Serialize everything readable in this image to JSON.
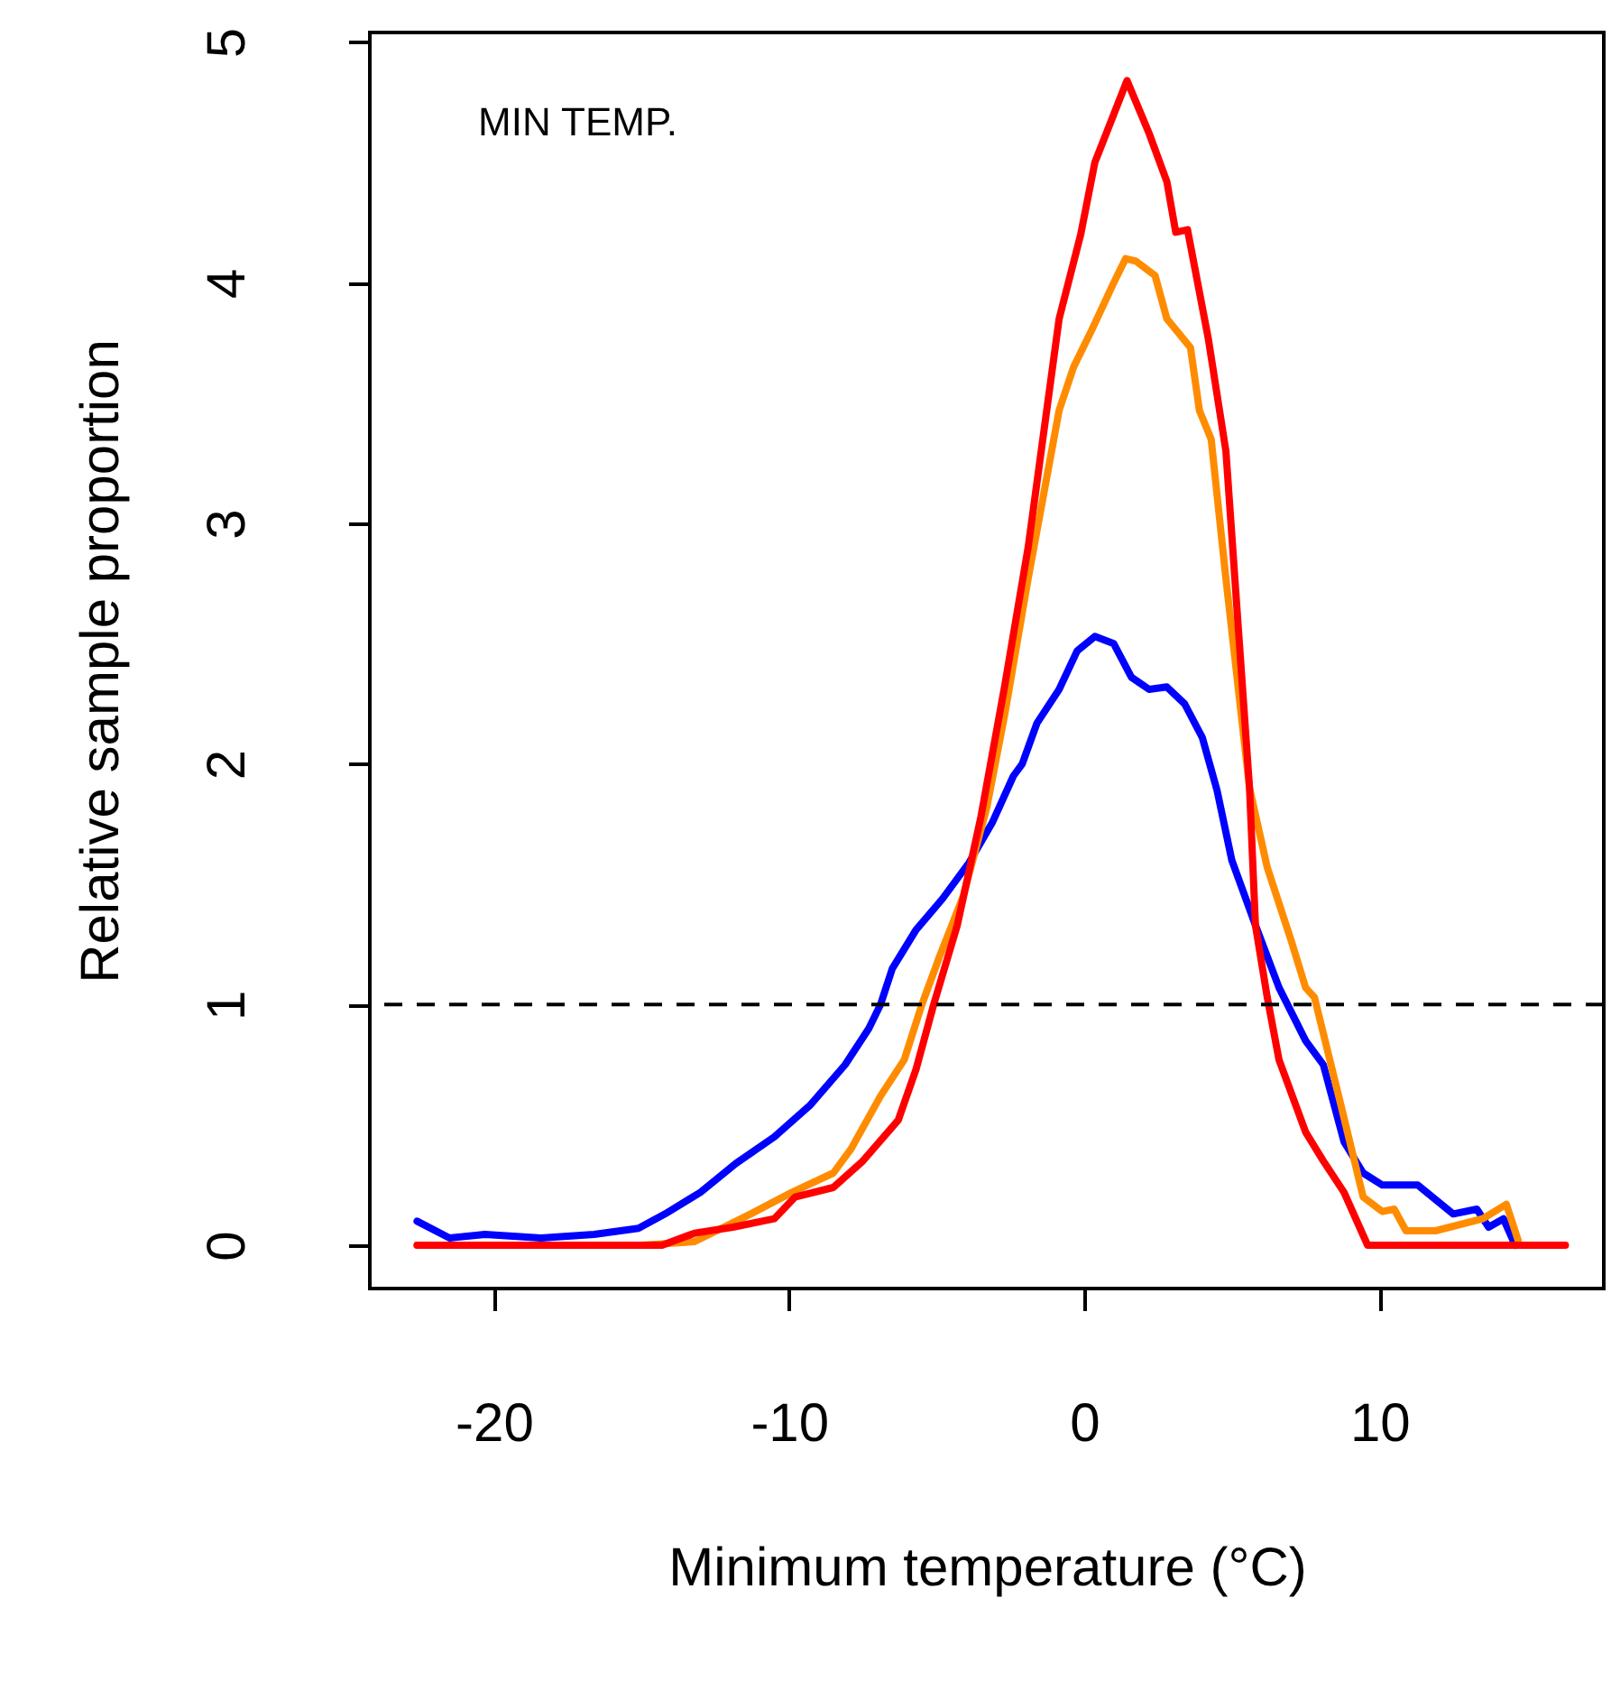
{
  "chart_data": {
    "type": "line",
    "xlabel": "Minimum temperature (°C)",
    "ylabel": "Relative sample proportion",
    "annotations": [
      "MIN TEMP."
    ],
    "xlim": [
      -24.2,
      17.6
    ],
    "xticks": [
      -20,
      -10,
      0,
      10
    ],
    "ylim": [
      -0.18,
      5.04
    ],
    "yticks": [
      0,
      1,
      2,
      3,
      4,
      5
    ],
    "grid": false,
    "ref_lines": [
      {
        "axis": "y",
        "value": 1,
        "line_style": "dashed",
        "color": "#000000"
      }
    ],
    "series": [
      {
        "color": "#0000ff",
        "x": [
          -22.6,
          -21.5,
          -20.3,
          -18.4,
          -16.6,
          -15.1,
          -14.2,
          -13.0,
          -11.8,
          -10.5,
          -9.3,
          -8.1,
          -7.3,
          -6.9,
          -6.5,
          -5.7,
          -4.8,
          -3.9,
          -3.1,
          -2.4,
          -2.1,
          -1.6,
          -0.85,
          -0.24,
          0.36,
          1.0,
          1.6,
          2.2,
          2.8,
          3.4,
          4.0,
          4.5,
          5.0,
          5.8,
          6.6,
          7.5,
          8.1,
          8.8,
          9.45,
          10.1,
          11.3,
          11.9,
          12.5,
          13.3,
          13.7,
          14.2,
          14.6
        ],
        "values": [
          0.1,
          0.03,
          0.045,
          0.03,
          0.045,
          0.07,
          0.13,
          0.22,
          0.34,
          0.45,
          0.58,
          0.75,
          0.9,
          1.0,
          1.15,
          1.31,
          1.44,
          1.59,
          1.76,
          1.95,
          2.0,
          2.17,
          2.31,
          2.47,
          2.53,
          2.5,
          2.36,
          2.31,
          2.32,
          2.25,
          2.11,
          1.89,
          1.6,
          1.33,
          1.07,
          0.85,
          0.75,
          0.43,
          0.3,
          0.25,
          0.25,
          0.19,
          0.13,
          0.15,
          0.075,
          0.11,
          0.0
        ]
      },
      {
        "color": "#ff8c00",
        "x": [
          -22.6,
          -15.0,
          -13.2,
          -11.3,
          -9.9,
          -8.5,
          -7.9,
          -6.9,
          -6.1,
          -5.5,
          -4.9,
          -4.1,
          -3.3,
          -2.7,
          -1.9,
          -0.85,
          -0.36,
          0.24,
          1.0,
          1.4,
          1.75,
          2.4,
          2.8,
          3.6,
          3.9,
          4.3,
          4.8,
          5.6,
          6.2,
          7.0,
          7.5,
          7.8,
          8.7,
          9.45,
          10.1,
          10.5,
          10.9,
          11.9,
          13.5,
          14.3,
          14.7
        ],
        "values": [
          0,
          0,
          0.015,
          0.13,
          0.22,
          0.3,
          0.4,
          0.62,
          0.77,
          1.0,
          1.2,
          1.45,
          1.82,
          2.2,
          2.77,
          3.47,
          3.65,
          3.8,
          4.0,
          4.1,
          4.09,
          4.03,
          3.85,
          3.73,
          3.47,
          3.35,
          2.77,
          1.9,
          1.57,
          1.27,
          1.07,
          1.03,
          0.58,
          0.2,
          0.14,
          0.15,
          0.06,
          0.06,
          0.11,
          0.17,
          0.02
        ]
      },
      {
        "color": "#ff0000",
        "x": [
          -22.6,
          -14.3,
          -13.2,
          -11.9,
          -10.5,
          -9.8,
          -8.5,
          -7.5,
          -6.3,
          -5.7,
          -5.1,
          -4.3,
          -3.5,
          -2.7,
          -1.9,
          -0.85,
          -0.12,
          0.36,
          1.0,
          1.45,
          2.2,
          2.8,
          3.1,
          3.5,
          4.2,
          4.8,
          5.6,
          5.8,
          6.2,
          6.6,
          7.5,
          8.1,
          8.8,
          9.6,
          16.3
        ],
        "values": [
          0,
          0,
          0.05,
          0.075,
          0.11,
          0.2,
          0.24,
          0.35,
          0.52,
          0.73,
          1.0,
          1.33,
          1.78,
          2.32,
          2.9,
          3.85,
          4.2,
          4.5,
          4.7,
          4.84,
          4.62,
          4.42,
          4.21,
          4.22,
          3.77,
          3.3,
          1.9,
          1.33,
          1.03,
          0.77,
          0.47,
          0.35,
          0.22,
          0,
          0
        ]
      }
    ]
  }
}
